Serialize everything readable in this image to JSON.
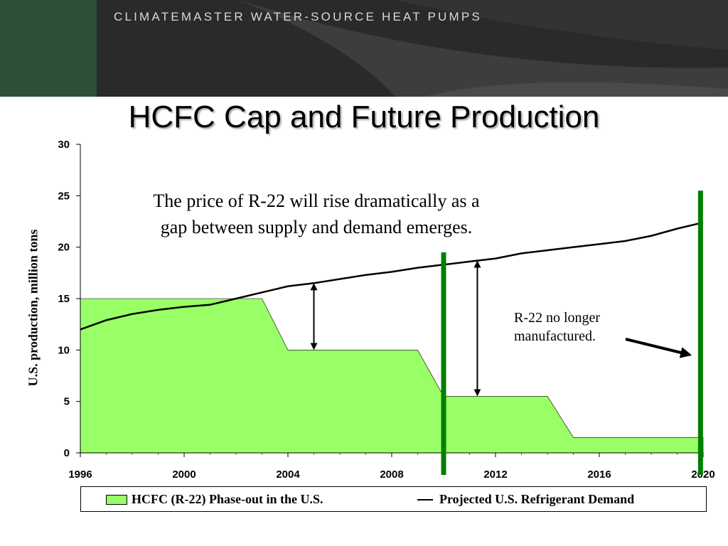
{
  "banner": {
    "title": "CLIMATEMASTER WATER-SOURCE HEAT PUMPS",
    "bg_color": "#2a2a2a",
    "accent_color": "#2e4f36"
  },
  "slide_title": "HCFC Cap and Future Production",
  "annotations": {
    "main_line1": "The price of R-22 will rise dramatically as a",
    "main_line2": "gap between supply and demand emerges.",
    "r22_line1": "R-22 no longer",
    "r22_line2": "manufactured."
  },
  "chart_data": {
    "type": "area",
    "xlim": [
      1996,
      2020
    ],
    "ylim": [
      0,
      30
    ],
    "x_ticks": [
      "1996",
      "2000",
      "2004",
      "2008",
      "2012",
      "2016",
      "2020"
    ],
    "y_ticks": [
      "0",
      "5",
      "10",
      "15",
      "20",
      "25",
      "30"
    ],
    "ylabel": "U.S. production, million tons",
    "xlabel": "",
    "grid": false,
    "legend_position": "bottom",
    "series": [
      {
        "name": "HCFC (R-22) Phase-out in the U.S.",
        "type": "area",
        "color": "#99ff66",
        "x": [
          1996,
          2003,
          2004,
          2009,
          2010,
          2014,
          2015,
          2020
        ],
        "y": [
          15,
          15,
          10,
          10,
          5.5,
          5.5,
          1.5,
          1.5
        ]
      },
      {
        "name": "Projected U.S. Refrigerant Demand",
        "type": "line",
        "color": "#000000",
        "x": [
          1996,
          1997,
          1998,
          1999,
          2000,
          2001,
          2002,
          2003,
          2004,
          2005,
          2006,
          2007,
          2008,
          2009,
          2010,
          2011,
          2012,
          2013,
          2014,
          2015,
          2016,
          2017,
          2018,
          2019,
          2020
        ],
        "y": [
          12.0,
          12.9,
          13.5,
          13.9,
          14.2,
          14.4,
          15.0,
          15.6,
          16.2,
          16.5,
          16.9,
          17.3,
          17.6,
          18.0,
          18.3,
          18.6,
          18.9,
          19.4,
          19.7,
          20.0,
          20.3,
          20.6,
          21.1,
          21.8,
          22.4
        ]
      }
    ],
    "markers": [
      {
        "kind": "vertical-bar",
        "x": 2010,
        "y_top": 19.5,
        "color": "#008000"
      },
      {
        "kind": "vertical-bar",
        "x": 2019.9,
        "y_top": 25.5,
        "color": "#008000"
      },
      {
        "kind": "double-arrow",
        "x": 2005,
        "y_from": 10,
        "y_to": 16.5
      },
      {
        "kind": "double-arrow",
        "x": 2011.3,
        "y_from": 5.5,
        "y_to": 18.7
      }
    ]
  }
}
